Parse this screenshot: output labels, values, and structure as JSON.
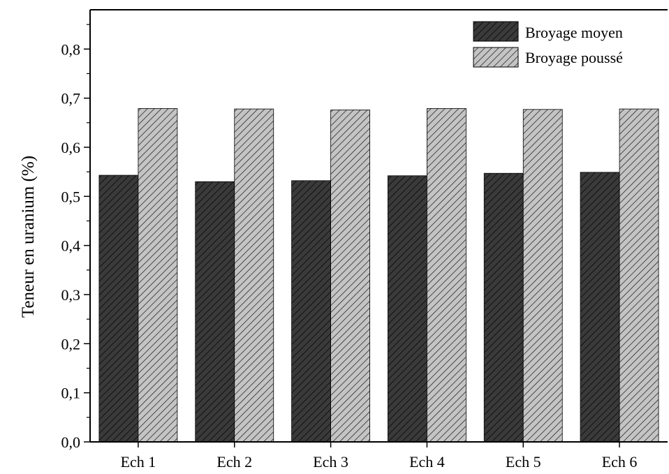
{
  "chart_data": {
    "type": "bar",
    "title": "",
    "xlabel": "",
    "ylabel": "Teneur en uranium (%)",
    "ylim": [
      0,
      0.88
    ],
    "yticks": [
      0.0,
      0.1,
      0.2,
      0.3,
      0.4,
      0.5,
      0.6,
      0.7,
      0.8
    ],
    "ytick_labels": [
      "0,0",
      "0,1",
      "0,2",
      "0,3",
      "0,4",
      "0,5",
      "0,6",
      "0,7",
      "0,8"
    ],
    "categories": [
      "Ech 1",
      "Ech 2",
      "Ech 3",
      "Ech 4",
      "Ech 5",
      "Ech 6"
    ],
    "series": [
      {
        "name": "Broyage moyen",
        "color": "#3a3a3a",
        "hatch_color": "#111111",
        "values": [
          0.543,
          0.53,
          0.532,
          0.542,
          0.547,
          0.549
        ]
      },
      {
        "name": "Broyage poussé",
        "color": "#c4c4c4",
        "hatch_color": "#2a2a2a",
        "values": [
          0.679,
          0.678,
          0.676,
          0.679,
          0.677,
          0.678
        ]
      }
    ],
    "legend_position": "top-right",
    "grid": false
  }
}
